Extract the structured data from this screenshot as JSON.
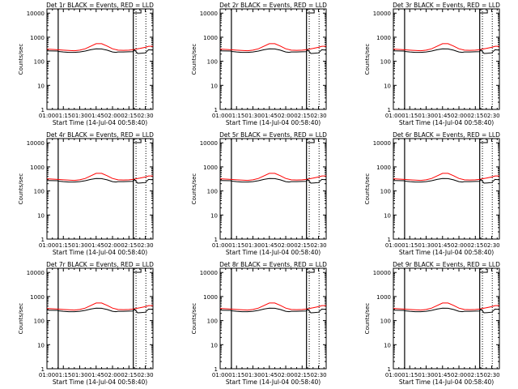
{
  "chart_data": [
    {
      "type": "line",
      "title": "Det 1r BLACK = Events, RED = LLD",
      "xlabel": "Start Time (14-Jul-04 00:58:40)",
      "ylabel": "Counts/sec"
    },
    {
      "type": "line",
      "title": "Det 2r BLACK = Events, RED = LLD",
      "xlabel": "Start Time (14-Jul-04 00:58:40)",
      "ylabel": "Counts/sec"
    },
    {
      "type": "line",
      "title": "Det 3r BLACK = Events, RED = LLD",
      "xlabel": "Start Time (14-Jul-04 00:58:40)",
      "ylabel": "Counts/sec"
    },
    {
      "type": "line",
      "title": "Det 4r BLACK = Events, RED = LLD",
      "xlabel": "Start Time (14-Jul-04 00:58:40)",
      "ylabel": "Counts/sec"
    },
    {
      "type": "line",
      "title": "Det 5r BLACK = Events, RED = LLD",
      "xlabel": "Start Time (14-Jul-04 00:58:40)",
      "ylabel": "Counts/sec"
    },
    {
      "type": "line",
      "title": "Det 6r BLACK = Events, RED = LLD",
      "xlabel": "Start Time (14-Jul-04 00:58:40)",
      "ylabel": "Counts/sec"
    },
    {
      "type": "line",
      "title": "Det 7r BLACK = Events, RED = LLD",
      "xlabel": "Start Time (14-Jul-04 00:58:40)",
      "ylabel": "Counts/sec"
    },
    {
      "type": "line",
      "title": "Det 8r BLACK = Events, RED = LLD",
      "xlabel": "Start Time (14-Jul-04 00:58:40)",
      "ylabel": "Counts/sec"
    },
    {
      "type": "line",
      "title": "Det 9r BLACK = Events, RED = LLD",
      "xlabel": "Start Time (14-Jul-04 00:58:40)",
      "ylabel": "Counts/sec"
    }
  ],
  "shared": {
    "x_tick_labels": [
      "01:00",
      "01:15",
      "01:30",
      "01:45",
      "02:00",
      "02:15",
      "02:30"
    ],
    "x_ticks_minutes_from_0100": [
      0,
      15,
      30,
      45,
      60,
      75,
      90
    ],
    "xlim_minutes_from_0100": [
      0,
      97
    ],
    "y_scale": "log",
    "ylim": [
      1,
      15000
    ],
    "y_tick_labels": [
      "1",
      "10",
      "100",
      "1000",
      "10000"
    ],
    "y_ticks": [
      1,
      10,
      100,
      1000,
      10000
    ],
    "vertical_lines_minutes_from_0100": [
      10.3,
      79.0,
      81.5,
      90.5
    ],
    "colors": {
      "events": "#000000",
      "lld": "#ff0000",
      "axes": "#000000"
    },
    "events_series": {
      "name": "Events",
      "x": [
        0,
        10,
        10.5,
        15,
        20,
        25,
        30,
        35,
        40,
        45,
        50,
        55,
        60,
        63,
        65,
        70,
        75,
        79,
        80,
        83,
        86,
        90,
        93,
        97
      ],
      "y": [
        270,
        265,
        255,
        245,
        235,
        235,
        245,
        265,
        300,
        330,
        325,
        290,
        245,
        235,
        245,
        245,
        248,
        250,
        300,
        210,
        215,
        225,
        300,
        290
      ]
    },
    "lld_series": {
      "name": "LLD",
      "x": [
        0,
        10,
        15,
        20,
        25,
        30,
        35,
        40,
        45,
        50,
        55,
        60,
        65,
        70,
        75,
        79,
        80,
        85,
        90,
        93,
        97
      ],
      "y": [
        320,
        300,
        290,
        280,
        275,
        290,
        330,
        420,
        540,
        540,
        430,
        330,
        290,
        285,
        290,
        300,
        310,
        340,
        380,
        420,
        420
      ]
    }
  }
}
